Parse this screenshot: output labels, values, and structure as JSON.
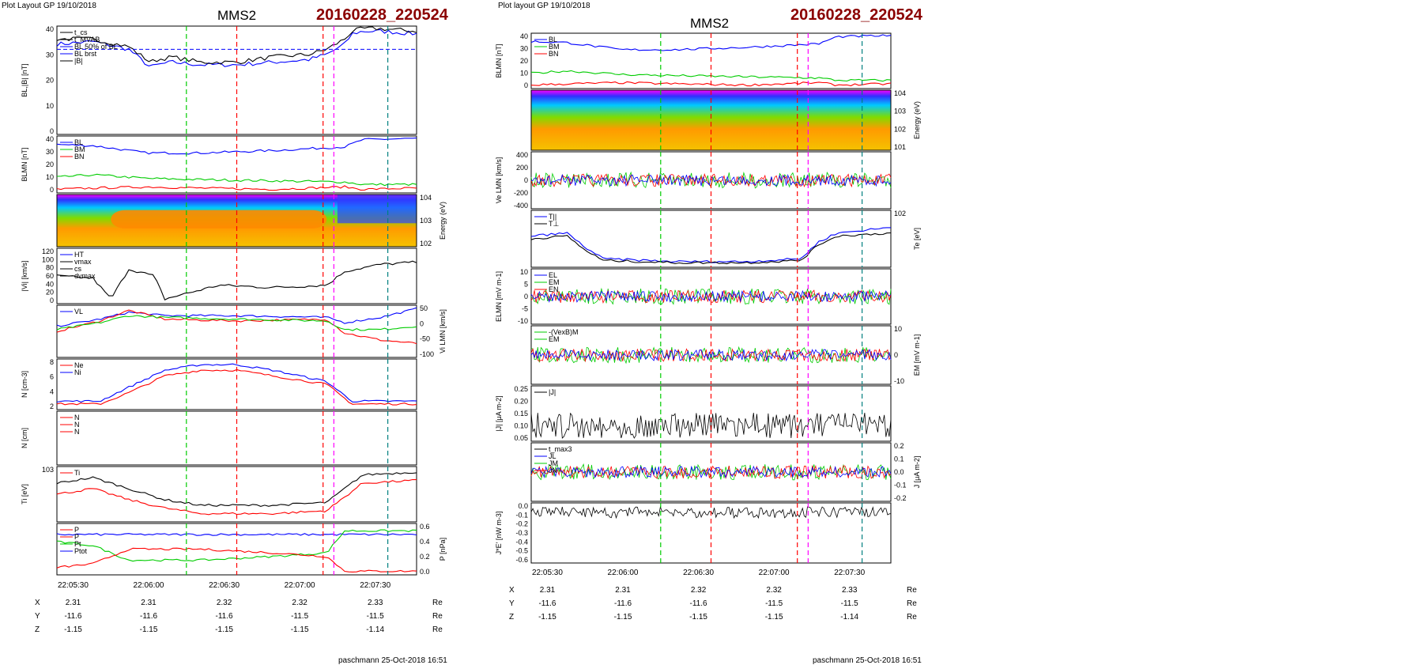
{
  "colors": {
    "blue": "#0000ff",
    "red": "#ff0000",
    "green": "#00cc00",
    "black": "#000000",
    "magenta": "#ff00ff",
    "gray": "#a0a0a0",
    "darkred": "#8b0000",
    "teal": "#008080"
  },
  "left": {
    "header": "Plot Layout GP 19/10/2018",
    "spacecraft": "MMS2",
    "event_id": "20160228_220524",
    "footer": "paschmann 25-Oct-2018 16:51"
  },
  "right": {
    "header": "Plot layout GP 19/10/2018",
    "spacecraft": "MMS2",
    "event_id": "20160228_220524",
    "footer": "paschmann 25-Oct-2018 16:51"
  },
  "time_ticks": [
    "22:05:30",
    "22:06:00",
    "22:06:30",
    "22:07:00",
    "22:07:30"
  ],
  "ephemeris": {
    "rows": [
      {
        "coord": "X",
        "values": [
          "2.31",
          "2.31",
          "2.32",
          "2.32",
          "2.33"
        ],
        "unit": "Re"
      },
      {
        "coord": "Y",
        "values": [
          "-11.6",
          "-11.6",
          "-11.6",
          "-11.5",
          "-11.5"
        ],
        "unit": "Re"
      },
      {
        "coord": "Z",
        "values": [
          "-1.15",
          "-1.15",
          "-1.15",
          "-1.15",
          "-1.14"
        ],
        "unit": "Re"
      }
    ]
  },
  "chart_data": [
    {
      "type": "line",
      "id": "L1",
      "ylabel": "BL,|B| [nT]",
      "ylim": [
        0,
        42
      ],
      "yticks": [
        "40",
        "30",
        "20",
        "10",
        "0"
      ],
      "legend": [
        "t_cs",
        "t_MVAB",
        "BL 50% of BL",
        "BL brst",
        "|B|"
      ],
      "x": [
        0,
        0.1,
        0.2,
        0.26,
        0.28,
        0.32,
        0.4,
        0.5,
        0.6,
        0.7,
        0.75,
        0.8,
        0.82,
        0.85,
        0.9,
        1
      ],
      "series": [
        {
          "name": "BL brst",
          "values": [
            35,
            36,
            33,
            26,
            27,
            28,
            27,
            27,
            28,
            29,
            31,
            35,
            39,
            40,
            40,
            39
          ]
        },
        {
          "name": "|B|",
          "values": [
            37,
            37,
            34,
            28,
            29,
            30,
            28,
            28,
            30,
            31,
            33,
            37,
            40,
            41,
            41,
            40
          ]
        }
      ],
      "hline": 33
    },
    {
      "type": "line",
      "id": "L2",
      "ylabel": "BLMN [nT]",
      "ylim": [
        -5,
        42
      ],
      "yticks": [
        "40",
        "30",
        "20",
        "10",
        "0"
      ],
      "legend": [
        "BL",
        "BM",
        "BN"
      ],
      "x": [
        0,
        0.1,
        0.25,
        0.4,
        0.6,
        0.8,
        0.85,
        1
      ],
      "series": [
        {
          "name": "BL",
          "values": [
            35,
            34,
            28,
            28,
            30,
            33,
            39,
            40
          ]
        },
        {
          "name": "BM",
          "values": [
            8,
            10,
            7,
            6,
            5,
            4,
            2,
            2
          ]
        },
        {
          "name": "BN",
          "values": [
            -2,
            -1,
            0,
            -1,
            -2,
            0,
            -2,
            -1
          ]
        }
      ]
    },
    {
      "type": "heatmap",
      "id": "L3",
      "ylabel": "Energy (eV)",
      "yticks": [
        "10^4",
        "10^3",
        "10^2"
      ]
    },
    {
      "type": "line",
      "id": "L4",
      "ylabel": "|Vi| [km/s]",
      "ylim": [
        0,
        120
      ],
      "yticks": [
        "120",
        "100",
        "80",
        "60",
        "40",
        "20",
        "0"
      ],
      "legend": [
        "HT",
        "vmax",
        "cs",
        "dvmax"
      ],
      "x": [
        0,
        0.1,
        0.15,
        0.2,
        0.27,
        0.3,
        0.45,
        0.6,
        0.75,
        0.8,
        0.9,
        1
      ],
      "values": [
        60,
        55,
        10,
        75,
        60,
        10,
        40,
        35,
        40,
        70,
        85,
        90
      ]
    },
    {
      "type": "line",
      "id": "L5",
      "ylabel": "Vi LMN [km/s]",
      "ylim": [
        -100,
        50
      ],
      "yticks": [
        "50",
        "0",
        "-50",
        "-100"
      ],
      "legend": [
        "VL"
      ],
      "x": [
        0,
        0.12,
        0.2,
        0.3,
        0.5,
        0.75,
        0.8,
        0.9,
        1
      ],
      "series": [
        {
          "name": "VL",
          "values": [
            -10,
            10,
            30,
            20,
            20,
            15,
            0,
            15,
            40
          ]
        },
        {
          "name": "",
          "values": [
            -25,
            5,
            35,
            10,
            5,
            10,
            -30,
            -50,
            -60
          ]
        },
        {
          "name": "",
          "values": [
            -20,
            0,
            20,
            15,
            10,
            5,
            -20,
            -20,
            -10
          ]
        }
      ]
    },
    {
      "type": "line",
      "id": "L6",
      "ylabel": "N [cm^-3]",
      "ylim": [
        0,
        9
      ],
      "yticks": [
        "8",
        "6",
        "4",
        "2"
      ],
      "legend": [
        "Ne",
        "Ni"
      ],
      "x": [
        0,
        0.12,
        0.2,
        0.3,
        0.4,
        0.5,
        0.6,
        0.75,
        0.78,
        0.82,
        1
      ],
      "series": [
        {
          "name": "Ne",
          "values": [
            1,
            1,
            3,
            6,
            7,
            7,
            6,
            4.5,
            3,
            1,
            1
          ]
        },
        {
          "name": "Ni",
          "values": [
            1.5,
            1.5,
            4,
            7,
            8,
            8,
            7,
            5,
            3.5,
            1.5,
            1.5
          ]
        }
      ]
    },
    {
      "type": "line",
      "id": "L7",
      "ylabel": "N [cm]",
      "legend": [
        "N",
        "N",
        "N"
      ]
    },
    {
      "type": "line",
      "id": "L8",
      "ylabel": "Ti [eV]",
      "yticks": [
        "10^3"
      ],
      "legend": [
        "Ti"
      ],
      "x": [
        0,
        0.1,
        0.2,
        0.3,
        0.4,
        0.6,
        0.75,
        0.8,
        0.85,
        1
      ],
      "series": [
        {
          "name": "",
          "values": [
            0.7,
            0.8,
            0.6,
            0.4,
            0.3,
            0.3,
            0.35,
            0.6,
            0.85,
            0.9
          ]
        },
        {
          "name": "Ti",
          "values": [
            0.5,
            0.6,
            0.4,
            0.25,
            0.15,
            0.15,
            0.2,
            0.45,
            0.7,
            0.75
          ]
        }
      ]
    },
    {
      "type": "line",
      "id": "L9",
      "ylabel": "P [nPa]",
      "ylim": [
        0,
        0.7
      ],
      "yticks": [
        "0.6",
        "0.4",
        "0.2",
        "0.0"
      ],
      "legend": [
        "P",
        "P",
        "Pt",
        "Ptot"
      ],
      "x": [
        0,
        0.1,
        0.2,
        0.4,
        0.6,
        0.75,
        0.8,
        1
      ],
      "series": [
        {
          "name": "Ptot",
          "values": [
            0.55,
            0.55,
            0.55,
            0.55,
            0.55,
            0.55,
            0.55,
            0.55
          ]
        },
        {
          "name": "Pt",
          "values": [
            0.45,
            0.4,
            0.2,
            0.2,
            0.25,
            0.3,
            0.6,
            0.6
          ]
        },
        {
          "name": "P",
          "values": [
            0.1,
            0.15,
            0.35,
            0.35,
            0.3,
            0.25,
            0.05,
            0.05
          ]
        }
      ]
    },
    {
      "type": "line",
      "id": "R1",
      "ylabel": "BLMN [nT]",
      "ylim": [
        -5,
        42
      ],
      "yticks": [
        "40",
        "30",
        "20",
        "10",
        "0"
      ],
      "legend": [
        "BL",
        "BM",
        "BN"
      ],
      "x": [
        0,
        0.1,
        0.25,
        0.4,
        0.6,
        0.8,
        0.85,
        1
      ],
      "series": [
        {
          "name": "BL",
          "values": [
            35,
            34,
            28,
            28,
            30,
            33,
            39,
            40
          ]
        },
        {
          "name": "BM",
          "values": [
            8,
            10,
            7,
            6,
            5,
            4,
            2,
            2
          ]
        },
        {
          "name": "BN",
          "values": [
            -2,
            -1,
            0,
            -1,
            -2,
            0,
            -2,
            -1
          ]
        }
      ]
    },
    {
      "type": "heatmap",
      "id": "R2",
      "ylabel": "Energy (eV)",
      "yticks": [
        "10^4",
        "10^3",
        "10^2",
        "10^1"
      ]
    },
    {
      "type": "line",
      "id": "R3",
      "ylabel": "Ve LMN [km/s]",
      "ylim": [
        -500,
        450
      ],
      "yticks": [
        "400",
        "200",
        "0",
        "-200",
        "-400"
      ]
    },
    {
      "type": "line",
      "id": "R4",
      "ylabel": "Te [eV]",
      "yticks": [
        "10^2"
      ],
      "legend": [
        "T||",
        "T⊥"
      ],
      "x": [
        0,
        0.1,
        0.15,
        0.2,
        0.4,
        0.6,
        0.75,
        0.8,
        0.85,
        1
      ],
      "series": [
        {
          "name": "T||",
          "values": [
            0.55,
            0.6,
            0.35,
            0.15,
            0.1,
            0.1,
            0.15,
            0.45,
            0.6,
            0.7
          ]
        },
        {
          "name": "T⊥",
          "values": [
            0.5,
            0.55,
            0.3,
            0.12,
            0.08,
            0.08,
            0.12,
            0.4,
            0.55,
            0.6
          ]
        }
      ]
    },
    {
      "type": "line",
      "id": "R5",
      "ylabel": "ELMN [mV m^-1]",
      "ylim": [
        -15,
        12
      ],
      "yticks": [
        "10",
        "5",
        "0",
        "-5",
        "-10"
      ],
      "legend": [
        "EL",
        "EM",
        "EN"
      ]
    },
    {
      "type": "line",
      "id": "R6",
      "ylabel": "EM [mV m^-1]",
      "ylim": [
        -15,
        15
      ],
      "yticks": [
        "10",
        "0",
        "-10"
      ],
      "legend": [
        "-(VexB)M",
        "EM"
      ]
    },
    {
      "type": "line",
      "id": "R7",
      "ylabel": "|J| [μA m^-2]",
      "ylim": [
        0,
        0.25
      ],
      "yticks": [
        "0.25",
        "0.20",
        "0.15",
        "0.10",
        "0.05"
      ],
      "legend": [
        "|J|"
      ]
    },
    {
      "type": "line",
      "id": "R8",
      "ylabel": "J [μA m^-2]",
      "ylim": [
        -0.25,
        0.25
      ],
      "yticks": [
        "0.2",
        "0.1",
        "0.0",
        "-0.1",
        "-0.2"
      ],
      "legend": [
        "t_max3",
        "JL",
        "JM",
        "JN"
      ]
    },
    {
      "type": "line",
      "id": "R9",
      "ylabel": "J*E' [nW m^-3]",
      "ylim": [
        -0.7,
        0.1
      ],
      "yticks": [
        "0.0",
        "-0.1",
        "-0.2",
        "-0.3",
        "-0.4",
        "-0.5",
        "-0.6"
      ]
    }
  ]
}
